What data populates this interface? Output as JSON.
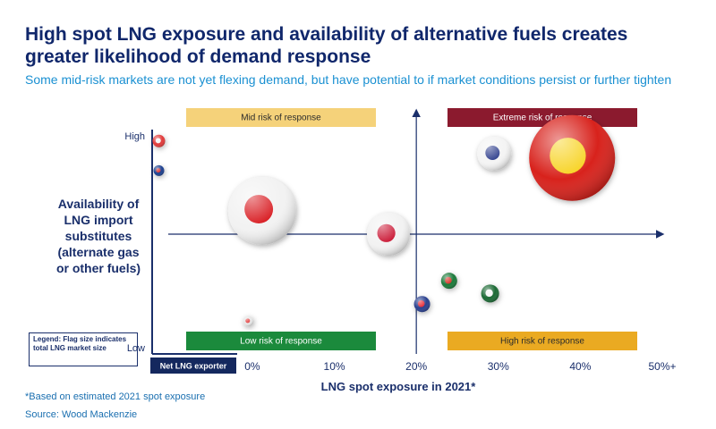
{
  "chart_data": {
    "type": "bubble",
    "title": "High spot LNG exposure and availability of alternative fuels creates greater likelihood of demand response",
    "subtitle": "Some mid-risk markets are not yet flexing demand, but have potential to if market conditions persist or further tighten",
    "x_label": "LNG spot exposure in 2021*",
    "y_label": "Availability of LNG import substitutes (alternate gas or other fuels)",
    "xlim": [
      -12,
      50
    ],
    "ylim": [
      0,
      10
    ],
    "xticks": [
      {
        "value": 0,
        "label": "0%"
      },
      {
        "value": 10,
        "label": "10%"
      },
      {
        "value": 20,
        "label": "20%"
      },
      {
        "value": 30,
        "label": "30%"
      },
      {
        "value": 40,
        "label": "40%"
      },
      {
        "value": 50,
        "label": "50%+"
      }
    ],
    "yticks": [
      {
        "value": 10,
        "label": "High"
      },
      {
        "value": 0,
        "label": "Low"
      }
    ],
    "series": [
      {
        "x": [
          -11.4,
          -11.4,
          1.2,
          16.6,
          29.5,
          39,
          24,
          29,
          20.7,
          -0.5
        ],
        "values": [
          9.8,
          8.4,
          6.5,
          5.4,
          9.2,
          9.0,
          3.2,
          2.6,
          2.1,
          1.3
        ],
        "sizes": [
          7,
          6,
          38,
          24,
          19,
          48,
          9,
          10,
          9,
          6
        ],
        "colors": [
          "#e23b3b",
          "#1f3f8f",
          "#f2f2f2",
          "#f2f2f2",
          "#f4f4f4",
          "#d8221e",
          "#1f7a3a",
          "#1f6a35",
          "#2b3f8f",
          "#e6e6e6"
        ],
        "inner_colors": [
          "#f5f5f5",
          "#d62828",
          "#d7141a",
          "#c8102e",
          "#2a3a8a",
          "#f7d21e",
          "#d7281e",
          "#f4f4f4",
          "#e4202c",
          "#e23b3b"
        ]
      }
    ],
    "quadrants": [
      {
        "text": "Mid risk of response",
        "color": "#f5d27a",
        "text_color": "#2b2b2b"
      },
      {
        "text": "Extreme risk of response",
        "color": "#8b1a2e",
        "text_color": "#ffffff"
      },
      {
        "text": "Low risk of response",
        "color": "#1b8a3c",
        "text_color": "#ffffff"
      },
      {
        "text": "High risk of response",
        "color": "#eaaa22",
        "text_color": "#2b2b2b"
      }
    ],
    "legend_note": "Legend: Flag size indicates total LNG market size",
    "exporter_label": "Net LNG exporter",
    "exporter_color": "#14285e",
    "footnote": "*Based on estimated 2021 spot exposure",
    "source": "Source: Wood Mackenzie"
  }
}
